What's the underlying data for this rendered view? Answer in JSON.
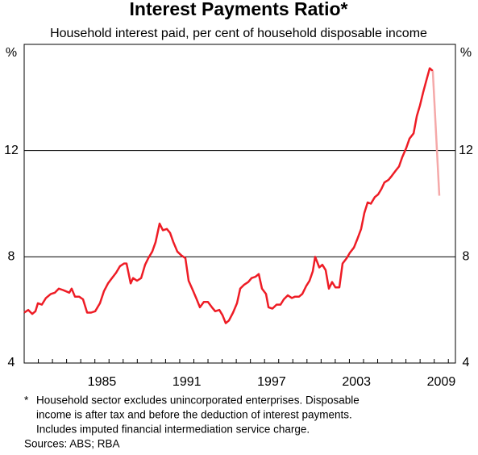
{
  "chart_data": {
    "type": "line",
    "title": "Interest Payments Ratio*",
    "subtitle": "Household interest paid, per cent of household disposable income",
    "y_unit": "%",
    "footnote_marker": "*",
    "footnote": [
      "Household sector excludes unincorporated enterprises. Disposable",
      "income is after tax and before the deduction of interest payments.",
      "Includes imputed financial intermediation service charge."
    ],
    "sources": "Sources: ABS; RBA",
    "xlim": [
      1980,
      2010.5
    ],
    "xticks": [
      1985,
      1991,
      1997,
      2003,
      2009
    ],
    "ylim": [
      4,
      16
    ],
    "yticks": [
      4,
      8,
      12
    ],
    "grid": true,
    "series": [
      {
        "color": "#ee1c25",
        "x": [
          1980.0,
          1980.29,
          1980.57,
          1980.8,
          1980.97,
          1981.25,
          1981.54,
          1981.88,
          1982.17,
          1982.45,
          1982.74,
          1983.19,
          1983.36,
          1983.59,
          1983.88,
          1984.16,
          1984.45,
          1984.73,
          1985.02,
          1985.36,
          1985.64,
          1985.93,
          1986.21,
          1986.5,
          1986.78,
          1987.07,
          1987.24,
          1987.53,
          1987.7,
          1987.98,
          1988.27,
          1988.55,
          1988.78,
          1989.06,
          1989.29,
          1989.58,
          1989.81,
          1990.09,
          1990.32,
          1990.55,
          1990.83,
          1991.12,
          1991.4,
          1991.63,
          1991.92,
          1992.2,
          1992.43,
          1992.71,
          1992.99,
          1993.28,
          1993.51,
          1993.8,
          1994.03,
          1994.25,
          1994.48,
          1994.77,
          1995.05,
          1995.28,
          1995.56,
          1995.85,
          1996.08,
          1996.36,
          1996.59,
          1996.82,
          1997.1,
          1997.28,
          1997.56,
          1997.85,
          1998.13,
          1998.36,
          1998.64,
          1998.93,
          1999.16,
          1999.44,
          1999.67,
          1999.95,
          2000.18,
          2000.41,
          2000.58,
          2000.87,
          2001.09,
          2001.32,
          2001.55,
          2001.78,
          2002.01,
          2002.29,
          2002.52,
          2002.81,
          2003.03,
          2003.32,
          2003.55,
          2003.83,
          2004.06,
          2004.29,
          2004.52,
          2004.8,
          2005.03,
          2005.26,
          2005.48,
          2005.77,
          2006.0,
          2006.28,
          2006.51,
          2006.74,
          2007.02,
          2007.25,
          2007.54,
          2007.77,
          2007.99,
          2008.22,
          2008.45,
          2008.68,
          2008.9
        ],
        "values": [
          5.9,
          6.0,
          5.85,
          5.95,
          6.25,
          6.2,
          6.45,
          6.6,
          6.65,
          6.8,
          6.75,
          6.65,
          6.8,
          6.5,
          6.5,
          6.4,
          5.9,
          5.9,
          5.95,
          6.25,
          6.7,
          7.0,
          7.2,
          7.4,
          7.65,
          7.75,
          7.75,
          7.0,
          7.2,
          7.1,
          7.2,
          7.7,
          7.95,
          8.2,
          8.55,
          9.25,
          9.0,
          9.05,
          8.9,
          8.55,
          8.2,
          8.05,
          7.95,
          7.1,
          6.75,
          6.4,
          6.1,
          6.3,
          6.3,
          6.1,
          5.95,
          6.0,
          5.8,
          5.5,
          5.6,
          5.9,
          6.25,
          6.8,
          6.95,
          7.05,
          7.2,
          7.25,
          7.35,
          6.8,
          6.6,
          6.1,
          6.05,
          6.2,
          6.2,
          6.4,
          6.55,
          6.45,
          6.5,
          6.5,
          6.6,
          6.9,
          7.1,
          7.45,
          8.0,
          7.6,
          7.7,
          7.5,
          6.8,
          7.05,
          6.85,
          6.85,
          7.75,
          7.95,
          8.15,
          8.35,
          8.65,
          9.05,
          9.65,
          10.05,
          10.0,
          10.25,
          10.35,
          10.55,
          10.8,
          10.9,
          11.05,
          11.25,
          11.4,
          11.75,
          12.1,
          12.45,
          12.65,
          13.3,
          13.7,
          14.2,
          14.65,
          15.1,
          15.0
        ]
      },
      {
        "color": "#f5a9a9",
        "x": [
          2008.9,
          2009.36
        ],
        "values": [
          15.0,
          10.3
        ]
      }
    ]
  }
}
